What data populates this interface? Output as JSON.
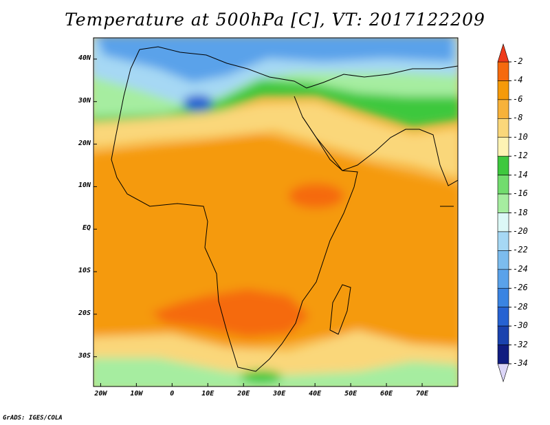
{
  "title": "Temperature at 500hPa [C], VT: 2017122209",
  "credit": "GrADS: IGES/COLA",
  "map": {
    "lon_range": [
      -22,
      80
    ],
    "lat_range": [
      -37,
      45
    ],
    "lat_labels": [
      "40N",
      "30N",
      "20N",
      "10N",
      "EQ",
      "10S",
      "20S",
      "30S"
    ],
    "lat_values": [
      40,
      30,
      20,
      10,
      0,
      -10,
      -20,
      -30
    ],
    "lon_labels": [
      "20W",
      "10W",
      "0",
      "10E",
      "20E",
      "30E",
      "40E",
      "50E",
      "60E",
      "70E"
    ],
    "lon_values": [
      -20,
      -10,
      0,
      10,
      20,
      30,
      40,
      50,
      60,
      70
    ]
  },
  "colorbar": {
    "labels": [
      "-2",
      "-4",
      "-6",
      "-8",
      "-10",
      "-12",
      "-14",
      "-16",
      "-18",
      "-20",
      "-22",
      "-24",
      "-26",
      "-28",
      "-30",
      "-32",
      "-34"
    ],
    "colors": {
      "above_-2": "#ee3a1a",
      "-2_-4": "#f56a0e",
      "-4_-6": "#f59a0a",
      "-6_-8": "#f7b23a",
      "-8_-10": "#fad77a",
      "-10_-12": "#fdf3b4",
      "-12_-14": "#3ec83e",
      "-14_-16": "#72dc6e",
      "-16_-18": "#a6eda0",
      "-18_-20": "#dcf8f6",
      "-20_-22": "#a6d8f4",
      "-22_-24": "#7cbcee",
      "-24_-26": "#5aa2ea",
      "-26_-28": "#3a84e2",
      "-28_-30": "#2662d2",
      "-30_-32": "#1a42ae",
      "-32_-34": "#101c80",
      "below_-34": "#dcd6f8"
    }
  }
}
